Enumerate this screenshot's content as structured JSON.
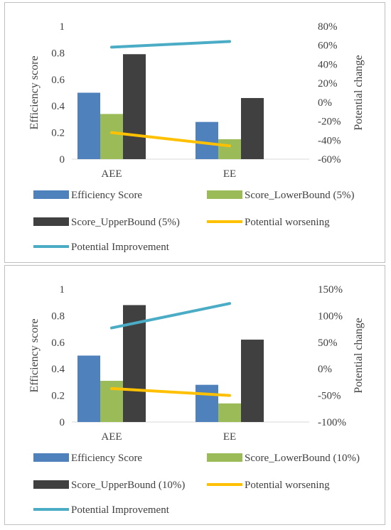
{
  "chart_data": [
    {
      "type": "bar",
      "categories": [
        "AEE",
        "EE"
      ],
      "ylabel": "Efficiency score",
      "y2label": "Potential change",
      "ylim": [
        0,
        1
      ],
      "y2lim": [
        -0.6,
        0.8
      ],
      "yticks": [
        "0",
        "0.2",
        "0.4",
        "0.6",
        "0.8",
        "1"
      ],
      "y2ticks": [
        "-60%",
        "-40%",
        "-20%",
        "0%",
        "20%",
        "40%",
        "60%",
        "80%"
      ],
      "series": [
        {
          "name": "Efficiency Score",
          "kind": "bar",
          "axis": "primary",
          "color": "#4f81bd",
          "values": [
            0.5,
            0.28
          ]
        },
        {
          "name": "Score_LowerBound (5%)",
          "kind": "bar",
          "axis": "primary",
          "color": "#9bbb59",
          "values": [
            0.34,
            0.15
          ]
        },
        {
          "name": "Score_UpperBound (5%)",
          "kind": "bar",
          "axis": "primary",
          "color": "#404040",
          "values": [
            0.79,
            0.46
          ]
        },
        {
          "name": "Potential worsening",
          "kind": "line",
          "axis": "secondary",
          "color": "#ffc000",
          "values": [
            -0.32,
            -0.46
          ]
        },
        {
          "name": "Potential Improvement",
          "kind": "line",
          "axis": "secondary",
          "color": "#4bacc6",
          "values": [
            0.58,
            0.64
          ]
        }
      ],
      "legend": "bottom",
      "grid": false
    },
    {
      "type": "bar",
      "categories": [
        "AEE",
        "EE"
      ],
      "ylabel": "Efficiency score",
      "y2label": "Potential change",
      "ylim": [
        0,
        1
      ],
      "y2lim": [
        -1.0,
        1.5
      ],
      "yticks": [
        "0",
        "0.2",
        "0.4",
        "0.6",
        "0.8",
        "1"
      ],
      "y2ticks": [
        "-100%",
        "-50%",
        "0%",
        "50%",
        "100%",
        "150%"
      ],
      "series": [
        {
          "name": "Efficiency Score",
          "kind": "bar",
          "axis": "primary",
          "color": "#4f81bd",
          "values": [
            0.5,
            0.28
          ]
        },
        {
          "name": "Score_LowerBound (10%)",
          "kind": "bar",
          "axis": "primary",
          "color": "#9bbb59",
          "values": [
            0.31,
            0.14
          ]
        },
        {
          "name": "Score_UpperBound (10%)",
          "kind": "bar",
          "axis": "primary",
          "color": "#404040",
          "values": [
            0.88,
            0.62
          ]
        },
        {
          "name": "Potential worsening",
          "kind": "line",
          "axis": "secondary",
          "color": "#ffc000",
          "values": [
            -0.37,
            -0.5
          ]
        },
        {
          "name": "Potential Improvement",
          "kind": "line",
          "axis": "secondary",
          "color": "#4bacc6",
          "values": [
            0.77,
            1.23
          ]
        }
      ],
      "legend": "bottom",
      "grid": false
    }
  ]
}
